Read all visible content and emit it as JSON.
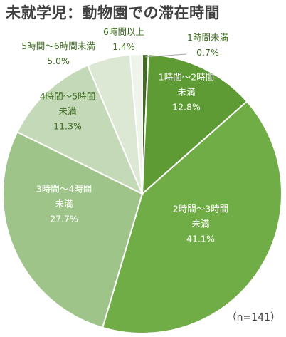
{
  "chart_data": {
    "type": "pie",
    "title": "未就学児：動物園での滞在時間",
    "note": "（n=141）",
    "slices": [
      {
        "label_lines": [
          "1時間未満"
        ],
        "value": 0.7,
        "value_text": "0.7%",
        "color": "#3f6b22"
      },
      {
        "label_lines": [
          "1時間～2時間",
          "未満"
        ],
        "value": 12.8,
        "value_text": "12.8%",
        "color": "#5e9b35"
      },
      {
        "label_lines": [
          "2時間～3時間",
          "未満"
        ],
        "value": 41.1,
        "value_text": "41.1%",
        "color": "#71ad47"
      },
      {
        "label_lines": [
          "3時間～4時間",
          "未満"
        ],
        "value": 27.7,
        "value_text": "27.7%",
        "color": "#9fc48a"
      },
      {
        "label_lines": [
          "4時間～5時間",
          "未満"
        ],
        "value": 11.3,
        "value_text": "11.3%",
        "color": "#c4d9b7"
      },
      {
        "label_lines": [
          "5時間～6時間未満"
        ],
        "value": 5.0,
        "value_text": "5.0%",
        "color": "#dce8d4"
      },
      {
        "label_lines": [
          "6時間以上"
        ],
        "value": 1.4,
        "value_text": "1.4%",
        "color": "#eef4ea"
      }
    ]
  }
}
